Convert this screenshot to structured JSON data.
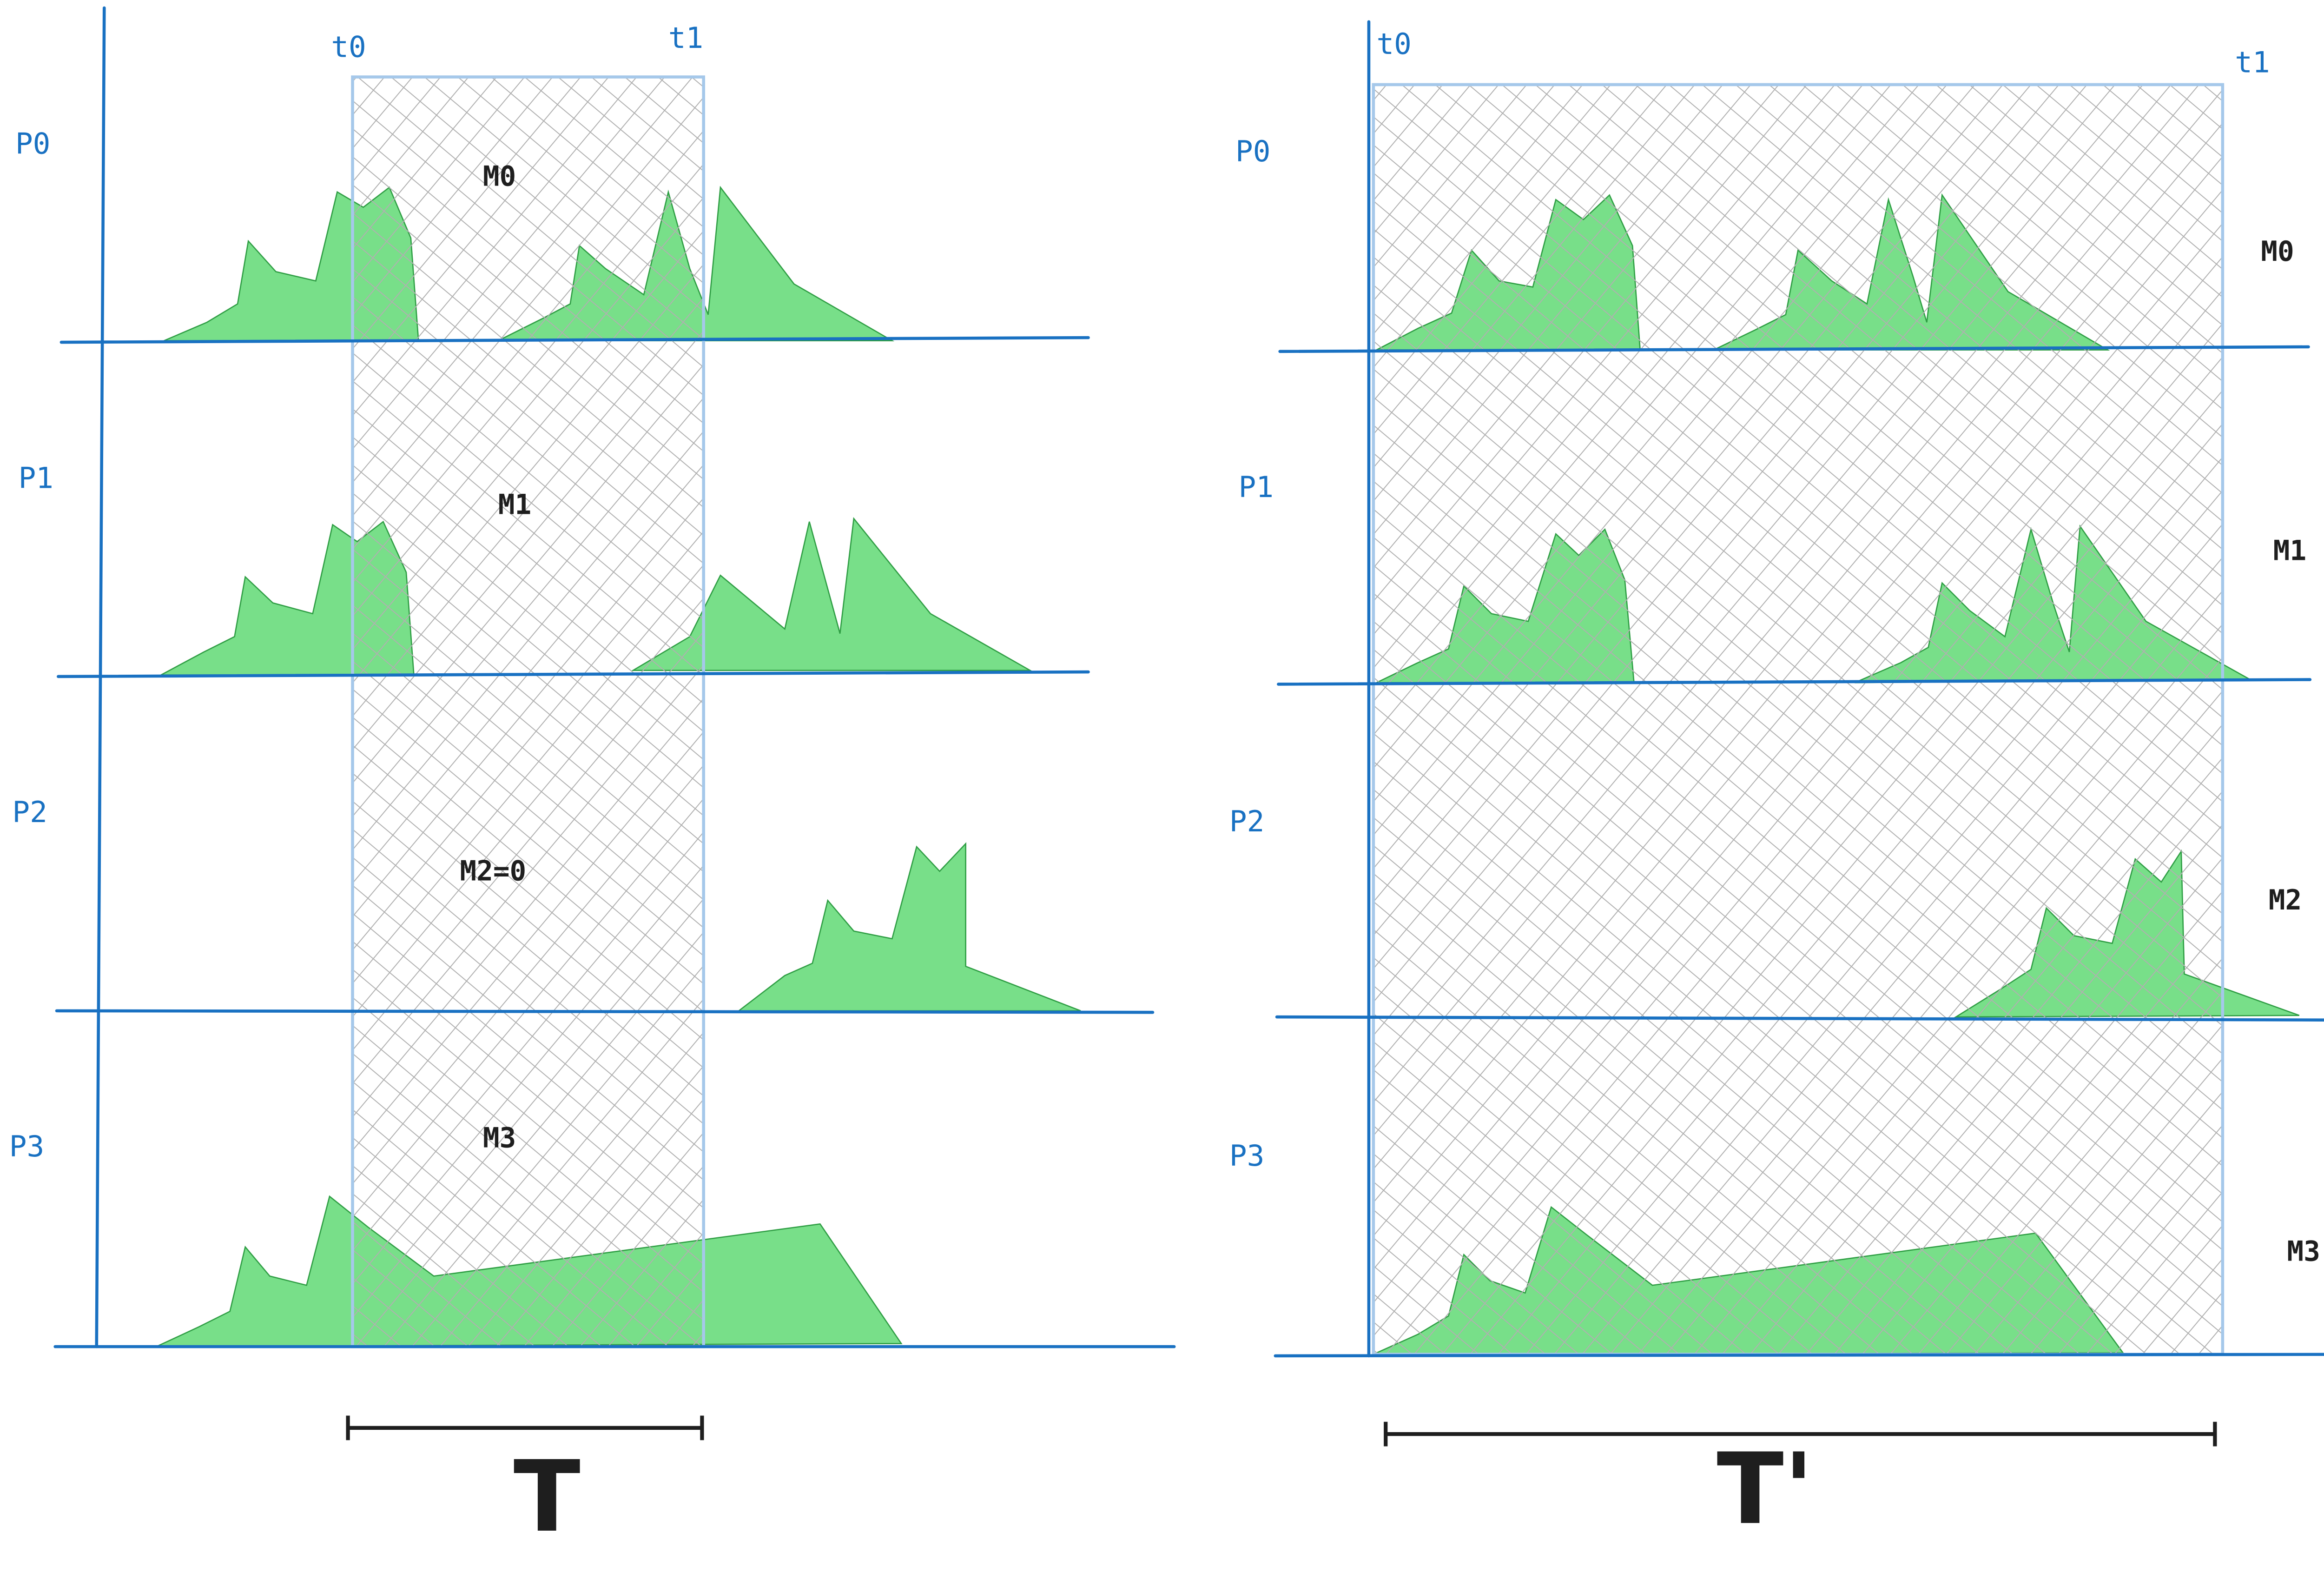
{
  "colors": {
    "axis": "#1971c2",
    "signal_fill": "#69db7c",
    "signal_stroke": "#2f9e44",
    "window_border": "#a5c8ea",
    "hatch": "#b0b0b0",
    "text": "#1e1e1e"
  },
  "left": {
    "rows": [
      "P0",
      "P1",
      "P2",
      "P3"
    ],
    "t0": "t0",
    "t1": "t1",
    "metrics": [
      "M0",
      "M1",
      "M2=0",
      "M3"
    ],
    "interval": "T"
  },
  "right": {
    "rows": [
      "P0",
      "P1",
      "P2",
      "P3"
    ],
    "t0": "t0",
    "t1": "t1",
    "metrics": [
      "M0",
      "M1",
      "M2",
      "M3"
    ],
    "interval": "T'"
  }
}
